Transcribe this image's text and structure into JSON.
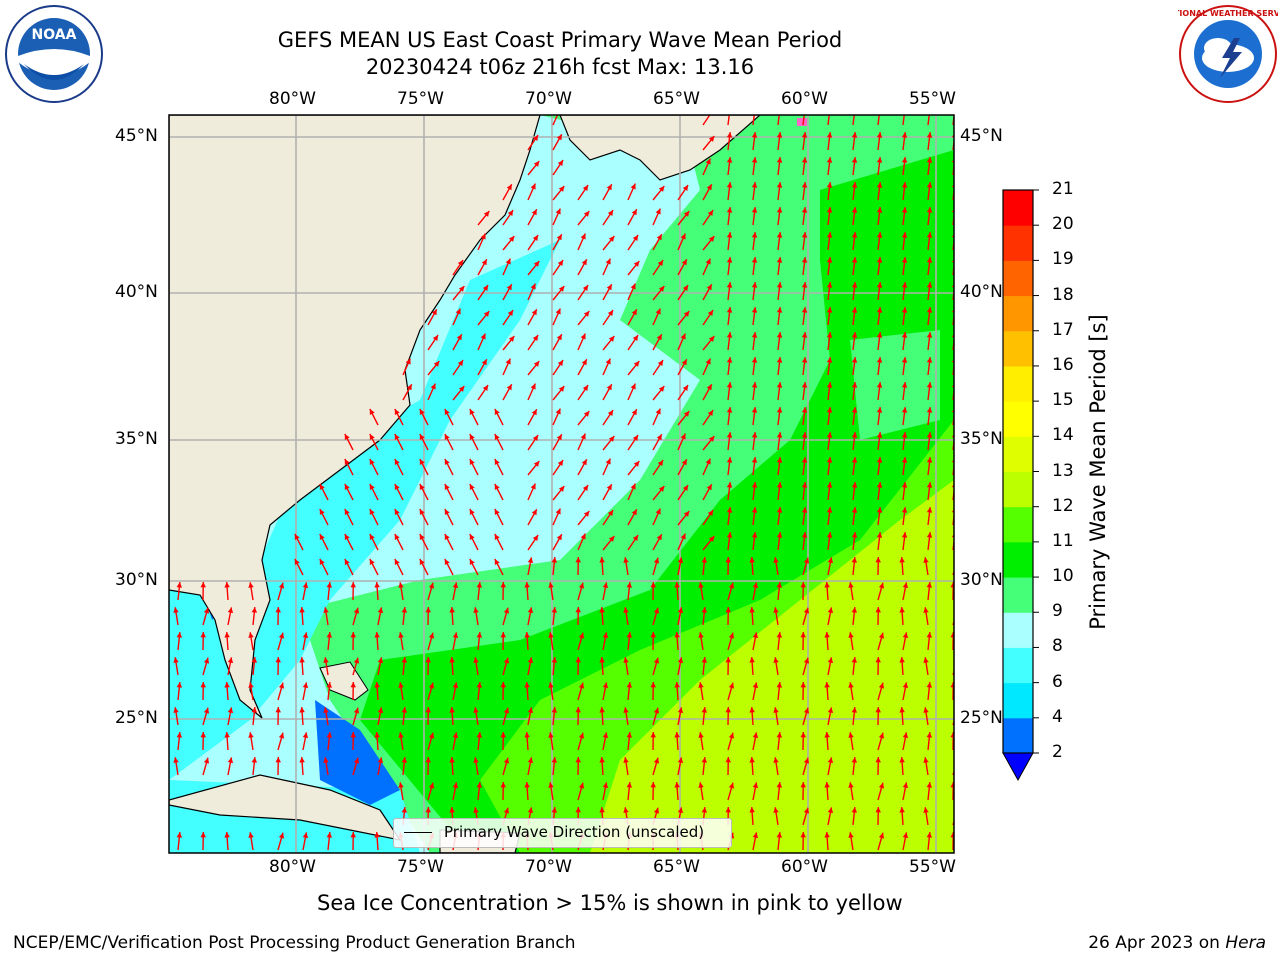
{
  "title": {
    "line1": "GEFS MEAN US East Coast Primary Wave Mean Period",
    "line2": "20230424 t06z 216h fcst   Max: 13.16"
  },
  "logos": {
    "noaa_text": "NOAA",
    "nws_text": "NATIONAL WEATHER SERVICE"
  },
  "map": {
    "lon_labels": [
      "80°W",
      "75°W",
      "70°W",
      "65°W",
      "60°W",
      "55°W"
    ],
    "lat_labels": [
      "45°N",
      "40°N",
      "35°N",
      "30°N",
      "25°N"
    ],
    "land_color": "#efecdc",
    "vector_color": "#ff0000",
    "legend_label": "Primary Wave Direction (unscaled)"
  },
  "colorbar": {
    "title": "Primary Wave Mean Period [s]",
    "labels": [
      "2",
      "4",
      "6",
      "8",
      "9",
      "10",
      "11",
      "12",
      "13",
      "14",
      "15",
      "16",
      "17",
      "18",
      "19",
      "20",
      "21"
    ],
    "colors": [
      "#0070ff",
      "#00e8ff",
      "#44ffff",
      "#aaffff",
      "#44ff77",
      "#00ee00",
      "#55ff00",
      "#bbff00",
      "#dfff00",
      "#ffff00",
      "#ffee00",
      "#ffc000",
      "#ff9600",
      "#ff6400",
      "#ff3200",
      "#ff0000"
    ],
    "extend_color": "#0000ff"
  },
  "subtitle": "Sea Ice Concentration > 15% is shown in pink to yellow",
  "footer": {
    "left": "NCEP/EMC/Verification Post Processing Product Generation Branch",
    "date": "26 Apr 2023 on ",
    "machine": "Hera"
  }
}
